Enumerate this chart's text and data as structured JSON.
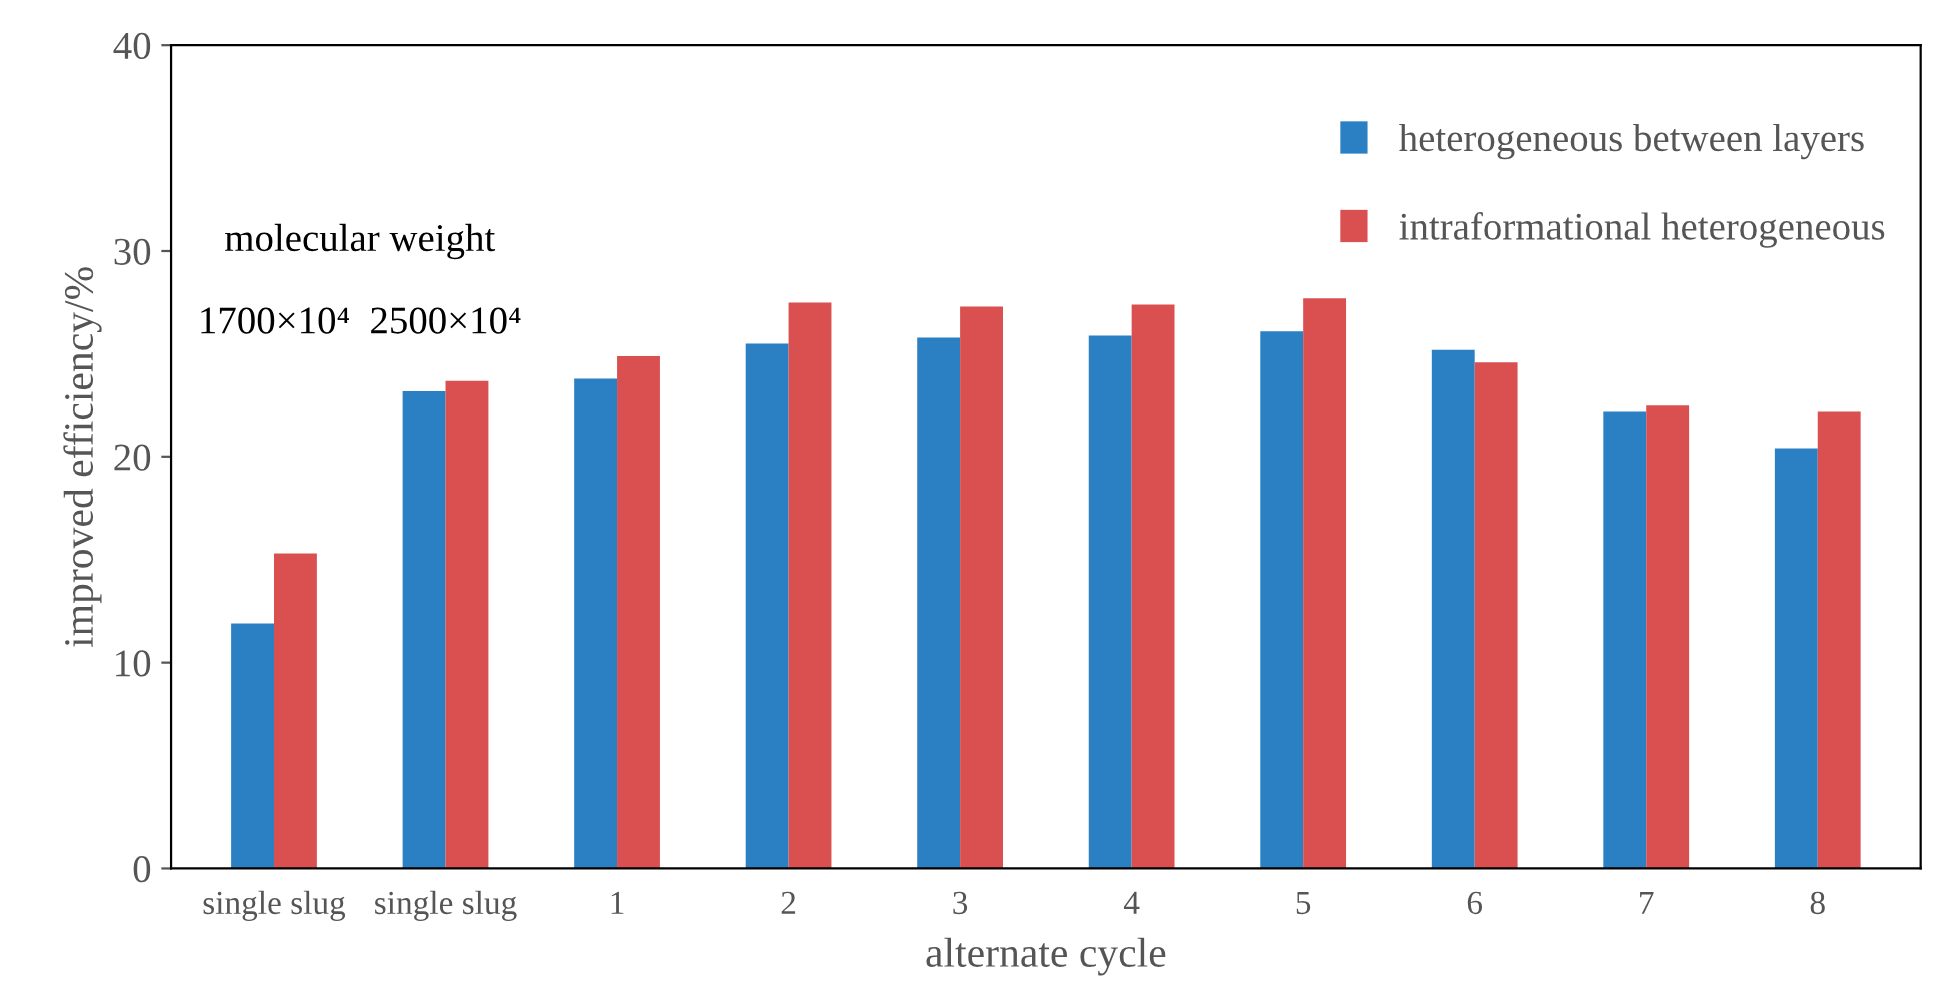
{
  "chart_data": {
    "type": "bar",
    "xlabel": "alternate cycle",
    "ylabel": "improved efficiency/%",
    "categories": [
      "single slug",
      "single slug",
      "1",
      "2",
      "3",
      "4",
      "5",
      "6",
      "7",
      "8"
    ],
    "series": [
      {
        "name": "heterogeneous between layers",
        "color": "#2a80c3",
        "values": [
          11.9,
          23.2,
          23.8,
          25.5,
          25.8,
          25.9,
          26.1,
          25.2,
          22.2,
          20.4
        ]
      },
      {
        "name": "intraformational heterogeneous",
        "color": "#da5050",
        "values": [
          15.3,
          23.7,
          24.9,
          27.5,
          27.3,
          27.4,
          27.7,
          24.6,
          22.5,
          22.2
        ]
      }
    ],
    "ylim": [
      0,
      40
    ],
    "yticks": [
      0,
      10,
      20,
      30,
      40
    ],
    "grid": false,
    "legend": "top right",
    "annotations": [
      "molecular weight",
      "1700×10⁴",
      "2500×10⁴"
    ]
  }
}
